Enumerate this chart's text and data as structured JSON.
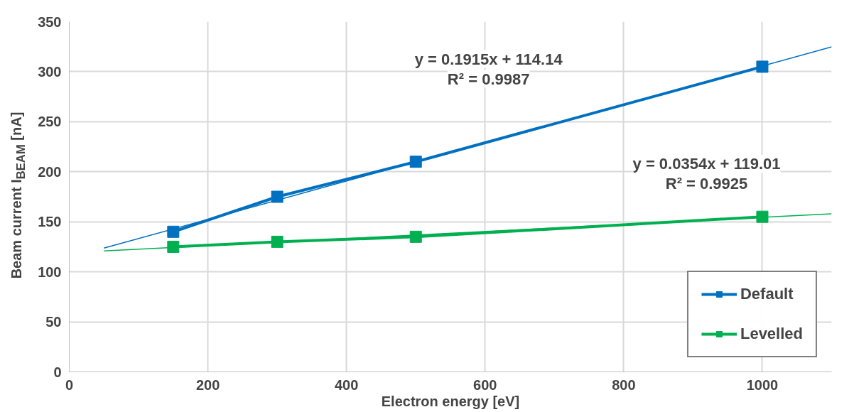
{
  "chart_data": {
    "type": "line",
    "xlabel": "Electron energy [eV]",
    "ylabel": "Beam current I$_{BEAM}$ [nA]",
    "xlim": [
      0,
      1100
    ],
    "xticks": [
      0,
      200,
      400,
      600,
      800,
      1000
    ],
    "ylim": [
      0,
      350
    ],
    "yticks": [
      0,
      50,
      100,
      150,
      200,
      250,
      300,
      350
    ],
    "grid": true,
    "legend": "bottom right",
    "marker": "square",
    "line_style": "solid",
    "series": [
      {
        "name": "Default",
        "color": "#0070c0",
        "x": [
          150,
          300,
          500,
          1000
        ],
        "values": [
          140,
          175,
          210,
          305
        ]
      },
      {
        "name": "Levelled",
        "color": "#00b050",
        "x": [
          150,
          300,
          500,
          1000
        ],
        "values": [
          125,
          130,
          135,
          155
        ]
      },
      {
        "type": "line",
        "marker": "none",
        "color": "#0070c0",
        "x": [
          50,
          1100
        ],
        "values": [
          123.7,
          324.8
        ]
      },
      {
        "type": "line",
        "marker": "none",
        "color": "#00b050",
        "x": [
          50,
          1100
        ],
        "values": [
          120.8,
          158.0
        ]
      }
    ],
    "annotations": [
      "y = 0.1915x + 114.14\nR² = 0.9987",
      "y = 0.0354x + 119.01\nR² = 0.9925"
    ]
  }
}
